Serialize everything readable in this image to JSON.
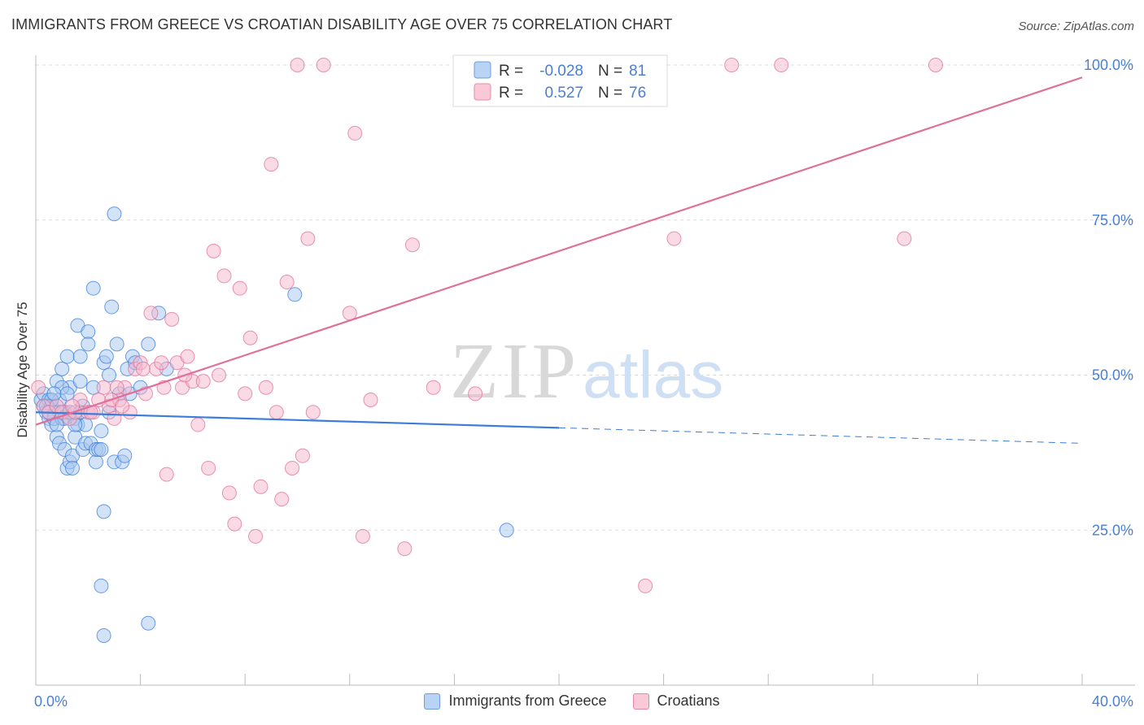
{
  "title": "IMMIGRANTS FROM GREECE VS CROATIAN DISABILITY AGE OVER 75 CORRELATION CHART",
  "source": "Source: ZipAtlas.com",
  "watermark": {
    "zip": "ZIP",
    "atlas": "atlas"
  },
  "colors": {
    "blue": "#3c7dd9",
    "blue_fill": "#a8c8f0",
    "pink": "#e0709a",
    "pink_fill": "#f5b8cb",
    "grid": "#dddddd",
    "tick_text": "#4a7fd4"
  },
  "chart_data": {
    "type": "scatter",
    "xlabel": "",
    "ylabel": "Disability Age Over 75",
    "xlim": [
      0,
      40
    ],
    "ylim": [
      0,
      100
    ],
    "x_tick_labels": [
      "0.0%",
      "40.0%"
    ],
    "y_ticks": [
      25,
      50,
      75,
      100
    ],
    "y_tick_labels": [
      "25.0%",
      "50.0%",
      "75.0%",
      "100.0%"
    ],
    "grid": true,
    "legend": {
      "placement": "top-center",
      "entries": [
        {
          "r_label": "R =",
          "r_value": "-0.028",
          "n_label": "N =",
          "n_value": "81"
        },
        {
          "r_label": "R =",
          "r_value": "0.527",
          "n_label": "N =",
          "n_value": "76"
        }
      ]
    },
    "series": [
      {
        "name": "Immigrants from Greece",
        "color": "#3c7dd9",
        "trend": {
          "x0": 0,
          "y0": 44.0,
          "x1": 40,
          "y1": 39.0,
          "solid_until_x": 20
        },
        "points": [
          [
            0.2,
            46
          ],
          [
            0.3,
            45
          ],
          [
            0.3,
            47
          ],
          [
            0.4,
            44
          ],
          [
            0.5,
            43
          ],
          [
            0.5,
            46
          ],
          [
            0.6,
            45
          ],
          [
            0.6,
            42
          ],
          [
            0.7,
            44
          ],
          [
            0.7,
            43
          ],
          [
            0.8,
            49
          ],
          [
            0.8,
            40
          ],
          [
            0.9,
            39
          ],
          [
            0.9,
            46
          ],
          [
            1.0,
            43
          ],
          [
            1.0,
            51
          ],
          [
            1.1,
            38
          ],
          [
            1.1,
            44
          ],
          [
            1.2,
            53
          ],
          [
            1.2,
            35
          ],
          [
            1.3,
            48
          ],
          [
            1.3,
            36
          ],
          [
            1.4,
            37
          ],
          [
            1.4,
            35
          ],
          [
            1.5,
            43
          ],
          [
            1.5,
            40
          ],
          [
            1.6,
            58
          ],
          [
            1.6,
            42
          ],
          [
            1.7,
            53
          ],
          [
            1.7,
            49
          ],
          [
            1.8,
            38
          ],
          [
            1.9,
            42
          ],
          [
            1.9,
            39
          ],
          [
            2.0,
            57
          ],
          [
            2.0,
            55
          ],
          [
            2.1,
            39
          ],
          [
            2.2,
            64
          ],
          [
            2.2,
            48
          ],
          [
            2.3,
            36
          ],
          [
            2.3,
            38
          ],
          [
            2.4,
            38
          ],
          [
            2.5,
            41
          ],
          [
            2.5,
            38
          ],
          [
            2.6,
            28
          ],
          [
            2.6,
            52
          ],
          [
            2.7,
            53
          ],
          [
            2.8,
            50
          ],
          [
            2.8,
            44
          ],
          [
            2.9,
            61
          ],
          [
            3.0,
            36
          ],
          [
            3.0,
            76
          ],
          [
            3.1,
            55
          ],
          [
            3.2,
            47
          ],
          [
            3.3,
            36
          ],
          [
            3.4,
            37
          ],
          [
            3.5,
            51
          ],
          [
            3.6,
            47
          ],
          [
            3.7,
            53
          ],
          [
            3.8,
            52
          ],
          [
            4.0,
            48
          ],
          [
            4.3,
            55
          ],
          [
            4.7,
            60
          ],
          [
            5.0,
            51
          ],
          [
            0.4,
            45
          ],
          [
            0.6,
            46
          ],
          [
            0.9,
            44
          ],
          [
            1.1,
            43
          ],
          [
            1.3,
            44
          ],
          [
            1.5,
            42
          ],
          [
            1.8,
            45
          ],
          [
            2.5,
            16
          ],
          [
            2.6,
            8
          ],
          [
            4.3,
            10
          ],
          [
            9.9,
            63
          ],
          [
            18.0,
            25
          ],
          [
            1.0,
            48
          ],
          [
            0.7,
            47
          ],
          [
            0.5,
            44
          ],
          [
            0.8,
            42
          ],
          [
            1.2,
            47
          ],
          [
            1.7,
            44
          ]
        ]
      },
      {
        "name": "Croatians",
        "color": "#e0709a",
        "trend": {
          "x0": 0,
          "y0": 42.0,
          "x1": 40,
          "y1": 98.0,
          "solid_until_x": 40
        },
        "points": [
          [
            0.1,
            48
          ],
          [
            0.3,
            45
          ],
          [
            0.5,
            44
          ],
          [
            0.8,
            45
          ],
          [
            1.0,
            44
          ],
          [
            1.3,
            43
          ],
          [
            1.5,
            44
          ],
          [
            1.7,
            46
          ],
          [
            2.0,
            44
          ],
          [
            2.2,
            44
          ],
          [
            2.4,
            46
          ],
          [
            2.6,
            48
          ],
          [
            2.8,
            45
          ],
          [
            3.0,
            43
          ],
          [
            3.2,
            46
          ],
          [
            3.4,
            48
          ],
          [
            3.6,
            44
          ],
          [
            3.8,
            51
          ],
          [
            4.0,
            52
          ],
          [
            4.2,
            47
          ],
          [
            4.4,
            60
          ],
          [
            4.6,
            51
          ],
          [
            4.8,
            52
          ],
          [
            5.0,
            34
          ],
          [
            5.2,
            59
          ],
          [
            5.4,
            52
          ],
          [
            5.6,
            48
          ],
          [
            5.8,
            53
          ],
          [
            6.0,
            49
          ],
          [
            6.2,
            42
          ],
          [
            6.4,
            49
          ],
          [
            6.6,
            35
          ],
          [
            6.8,
            70
          ],
          [
            7.0,
            50
          ],
          [
            7.2,
            66
          ],
          [
            7.4,
            31
          ],
          [
            7.6,
            26
          ],
          [
            7.8,
            64
          ],
          [
            8.0,
            47
          ],
          [
            8.2,
            56
          ],
          [
            8.4,
            24
          ],
          [
            8.6,
            32
          ],
          [
            8.8,
            48
          ],
          [
            9.0,
            84
          ],
          [
            9.2,
            44
          ],
          [
            9.4,
            30
          ],
          [
            9.6,
            65
          ],
          [
            9.8,
            35
          ],
          [
            10.0,
            100
          ],
          [
            10.2,
            37
          ],
          [
            10.4,
            72
          ],
          [
            10.6,
            44
          ],
          [
            11.0,
            100
          ],
          [
            12.0,
            60
          ],
          [
            12.2,
            89
          ],
          [
            12.5,
            24
          ],
          [
            12.8,
            46
          ],
          [
            14.1,
            22
          ],
          [
            14.4,
            71
          ],
          [
            15.2,
            48
          ],
          [
            16.8,
            47
          ],
          [
            21.9,
            100
          ],
          [
            23.3,
            16
          ],
          [
            24.4,
            72
          ],
          [
            26.6,
            100
          ],
          [
            28.5,
            100
          ],
          [
            33.2,
            72
          ],
          [
            34.4,
            100
          ],
          [
            1.4,
            45
          ],
          [
            2.9,
            46
          ],
          [
            3.3,
            45
          ],
          [
            4.1,
            51
          ],
          [
            5.7,
            50
          ],
          [
            2.1,
            44
          ],
          [
            3.1,
            48
          ],
          [
            4.9,
            48
          ]
        ]
      }
    ]
  }
}
